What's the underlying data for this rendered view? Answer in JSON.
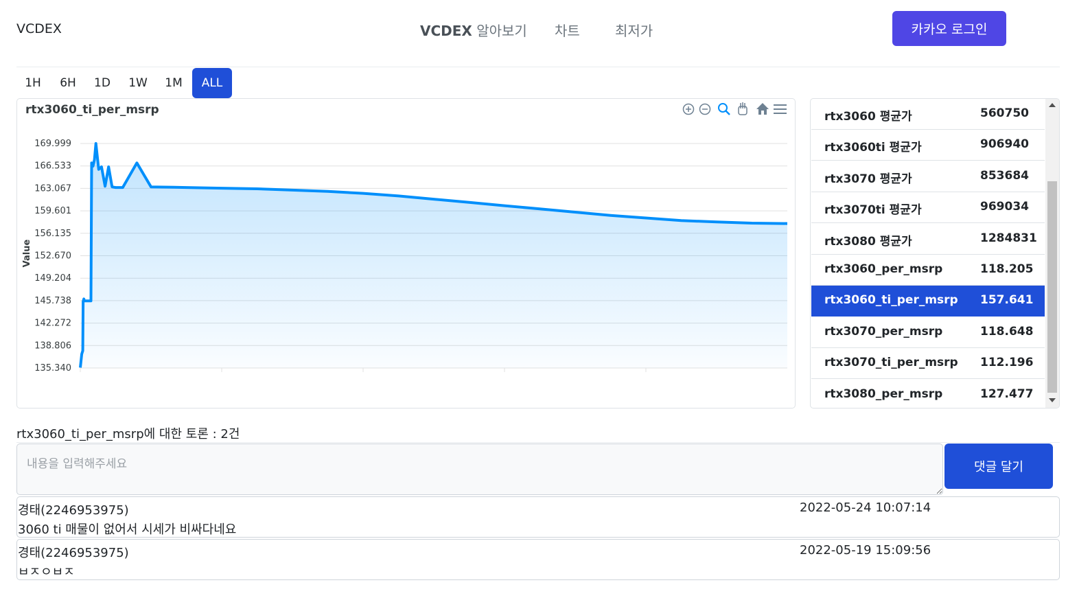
{
  "nav": {
    "brand": "VCDEX",
    "menu_about_bold": "VCDEX",
    "menu_about_rest": " 알아보기",
    "menu_chart": "차트",
    "menu_lowest": "최저가",
    "login": "카카오 로그인"
  },
  "ranges": [
    "1H",
    "6H",
    "1D",
    "1W",
    "1M",
    "ALL"
  ],
  "active_range": "ALL",
  "chart_data": {
    "type": "area",
    "title": "rtx3060_ti_per_msrp",
    "ylabel": "Value",
    "yticks": [
      "169.999",
      "166.533",
      "163.067",
      "159.601",
      "156.135",
      "152.670",
      "149.204",
      "145.738",
      "142.272",
      "138.806",
      "135.340"
    ],
    "ylim": [
      135.34,
      169.999
    ],
    "x": [
      0,
      0.2,
      0.35,
      0.4,
      0.5,
      0.55,
      1,
      1.2,
      1.5,
      1.6,
      1.8,
      2,
      2.2,
      2.6,
      3,
      3.5,
      4,
      4.5,
      5,
      6,
      8,
      10,
      15,
      20,
      25,
      30,
      35,
      40,
      45,
      50,
      55,
      60,
      65,
      70,
      75,
      80,
      85,
      90,
      95,
      100
    ],
    "values": [
      135.4,
      137.5,
      138.0,
      145.6,
      146.0,
      145.7,
      145.7,
      145.7,
      145.7,
      167.0,
      166.5,
      167.5,
      170.0,
      166.0,
      166.4,
      163.4,
      166.4,
      163.3,
      163.2,
      163.2,
      167.0,
      163.3,
      163.2,
      163.1,
      163.0,
      162.8,
      162.6,
      162.3,
      161.9,
      161.4,
      160.9,
      160.4,
      159.9,
      159.4,
      158.9,
      158.5,
      158.1,
      157.9,
      157.7,
      157.641
    ],
    "grid": true,
    "series_color": "#008ffb",
    "toolbar_icons": [
      "zoom-in-icon",
      "zoom-out-icon",
      "selection-zoom-icon",
      "pan-icon",
      "reset-home-icon",
      "menu-icon"
    ]
  },
  "list": {
    "items": [
      {
        "name": "rtx3060 평균가",
        "value": "560750"
      },
      {
        "name": "rtx3060ti 평균가",
        "value": "906940"
      },
      {
        "name": "rtx3070 평균가",
        "value": "853684"
      },
      {
        "name": "rtx3070ti 평균가",
        "value": "969034"
      },
      {
        "name": "rtx3080 평균가",
        "value": "1284831"
      },
      {
        "name": "rtx3060_per_msrp",
        "value": "118.205"
      },
      {
        "name": "rtx3060_ti_per_msrp",
        "value": "157.641"
      },
      {
        "name": "rtx3070_per_msrp",
        "value": "118.648"
      },
      {
        "name": "rtx3070_ti_per_msrp",
        "value": "112.196"
      },
      {
        "name": "rtx3080_per_msrp",
        "value": "127.477"
      }
    ],
    "active_index": 6
  },
  "discussion": {
    "title": "rtx3060_ti_per_msrp에 대한 토론 : 2건",
    "placeholder": "내용을 입력해주세요",
    "submit": "댓글 달기",
    "comments": [
      {
        "author": "경태(2246953975)",
        "time": "2022-05-24 10:07:14",
        "body": "3060 ti 매물이 없어서 시세가 비싸다네요"
      },
      {
        "author": "경태(2246953975)",
        "time": "2022-05-19 15:09:56",
        "body": "ㅂㅈㅇㅂㅈ"
      }
    ]
  },
  "colors": {
    "accent": "#1f4fd8",
    "login": "#4f46e5",
    "series": "#008ffb"
  }
}
